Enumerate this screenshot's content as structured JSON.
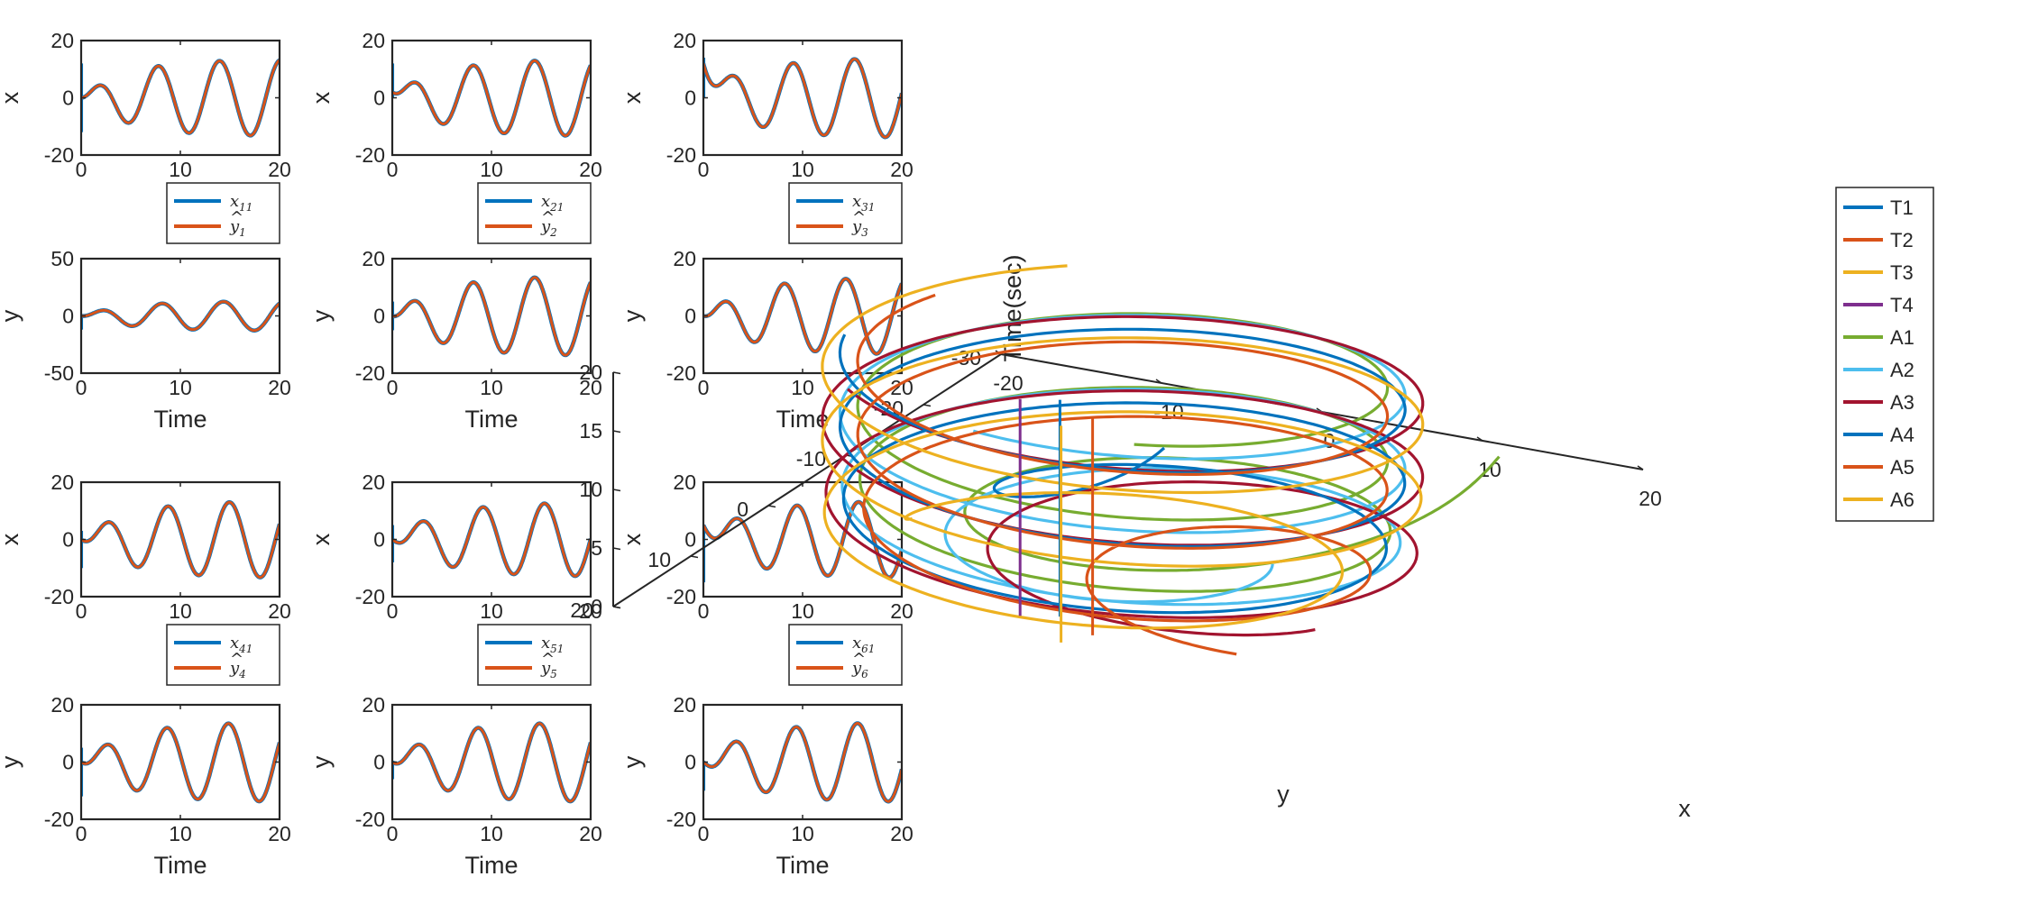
{
  "chart_data": [
    {
      "type": "line",
      "panel": "x_11",
      "ylabel": "x",
      "xlabel": "",
      "xlim": [
        0,
        20
      ],
      "ylim": [
        -20,
        20
      ],
      "xticks": [
        0,
        10,
        20
      ],
      "yticks": [
        -20,
        0,
        20
      ],
      "signal": {
        "amplitude": 13.5,
        "period": 6.2,
        "phase": 0.0,
        "ramp": 4.5,
        "start": 0,
        "spike": [
          -12,
          12
        ]
      },
      "legend": {
        "entries": [
          {
            "label": "x",
            "sub": "11",
            "hat": false
          },
          {
            "label": "y",
            "sub": "1",
            "hat": true
          }
        ]
      }
    },
    {
      "type": "line",
      "panel": "x_21",
      "ylabel": "x",
      "xlabel": "",
      "xlim": [
        0,
        20
      ],
      "ylim": [
        -20,
        20
      ],
      "xticks": [
        0,
        10,
        20
      ],
      "yticks": [
        -20,
        0,
        20
      ],
      "signal": {
        "amplitude": 13.5,
        "period": 6.2,
        "phase": 0.4,
        "ramp": 4.5,
        "start": 2,
        "spike": [
          0,
          12
        ]
      },
      "legend": {
        "entries": [
          {
            "label": "x",
            "sub": "21",
            "hat": false
          },
          {
            "label": "y",
            "sub": "2",
            "hat": true
          }
        ]
      }
    },
    {
      "type": "line",
      "panel": "x_31",
      "ylabel": "x",
      "xlabel": "",
      "xlim": [
        0,
        20
      ],
      "ylim": [
        -20,
        20
      ],
      "xticks": [
        0,
        10,
        20
      ],
      "yticks": [
        -20,
        0,
        20
      ],
      "signal": {
        "amplitude": 14,
        "period": 6.2,
        "phase": 1.3,
        "ramp": 4.5,
        "start": 12,
        "spike": [
          0,
          14
        ]
      },
      "legend": {
        "entries": [
          {
            "label": "x",
            "sub": "31",
            "hat": false
          },
          {
            "label": "y",
            "sub": "3",
            "hat": true
          }
        ]
      }
    },
    {
      "type": "line",
      "panel": "y_1",
      "ylabel": "y",
      "xlabel": "Time",
      "xlim": [
        0,
        20
      ],
      "ylim": [
        -50,
        50
      ],
      "xticks": [
        0,
        10,
        20
      ],
      "yticks": [
        -50,
        0,
        50
      ],
      "signal": {
        "amplitude": 13,
        "period": 6.2,
        "phase": 0.4,
        "ramp": 4.5,
        "start": 0,
        "spike": [
          -12,
          0
        ]
      }
    },
    {
      "type": "line",
      "panel": "y_2",
      "ylabel": "y",
      "xlabel": "Time",
      "xlim": [
        0,
        20
      ],
      "ylim": [
        -20,
        20
      ],
      "xticks": [
        0,
        10,
        20
      ],
      "yticks": [
        -20,
        0,
        20
      ],
      "signal": {
        "amplitude": 14,
        "period": 6.2,
        "phase": 0.4,
        "ramp": 4.5,
        "start": 0,
        "spike": [
          -5,
          5
        ]
      }
    },
    {
      "type": "line",
      "panel": "y_3",
      "ylabel": "y",
      "xlabel": "Time",
      "xlim": [
        0,
        20
      ],
      "ylim": [
        -20,
        20
      ],
      "xticks": [
        0,
        10,
        20
      ],
      "yticks": [
        -20,
        0,
        20
      ],
      "signal": {
        "amplitude": 13.5,
        "period": 6.2,
        "phase": 0.4,
        "ramp": 4.5,
        "start": 0,
        "spike": [
          0,
          0
        ]
      }
    },
    {
      "type": "line",
      "panel": "x_41",
      "ylabel": "x",
      "xlabel": "",
      "xlim": [
        0,
        20
      ],
      "ylim": [
        -20,
        20
      ],
      "xticks": [
        0,
        10,
        20
      ],
      "yticks": [
        -20,
        0,
        20
      ],
      "signal": {
        "amplitude": 13.5,
        "period": 6.2,
        "phase": 1.0,
        "ramp": 4.5,
        "start": 0,
        "spike": [
          -10,
          3
        ]
      },
      "legend": {
        "entries": [
          {
            "label": "x",
            "sub": "41",
            "hat": false
          },
          {
            "label": "y",
            "sub": "4",
            "hat": true
          }
        ]
      }
    },
    {
      "type": "line",
      "panel": "x_51",
      "ylabel": "x",
      "xlabel": "",
      "xlim": [
        0,
        20
      ],
      "ylim": [
        -20,
        20
      ],
      "xticks": [
        0,
        10,
        20
      ],
      "yticks": [
        -20,
        0,
        20
      ],
      "signal": {
        "amplitude": 13,
        "period": 6.2,
        "phase": 1.4,
        "ramp": 4.5,
        "start": 0,
        "spike": [
          -8,
          5
        ]
      },
      "legend": {
        "entries": [
          {
            "label": "x",
            "sub": "51",
            "hat": false
          },
          {
            "label": "y",
            "sub": "5",
            "hat": true
          }
        ]
      }
    },
    {
      "type": "line",
      "panel": "x_61",
      "ylabel": "x",
      "xlabel": "",
      "xlim": [
        0,
        20
      ],
      "ylim": [
        -20,
        20
      ],
      "xticks": [
        0,
        10,
        20
      ],
      "yticks": [
        -20,
        0,
        20
      ],
      "signal": {
        "amplitude": 13.5,
        "period": 6.2,
        "phase": 1.7,
        "ramp": 4.5,
        "start": 5,
        "spike": [
          -15,
          3
        ]
      },
      "legend": {
        "entries": [
          {
            "label": "x",
            "sub": "61",
            "hat": false
          },
          {
            "label": "y",
            "sub": "6",
            "hat": true
          }
        ]
      }
    },
    {
      "type": "line",
      "panel": "y_4",
      "ylabel": "y",
      "xlabel": "Time",
      "xlim": [
        0,
        20
      ],
      "ylim": [
        -20,
        20
      ],
      "xticks": [
        0,
        10,
        20
      ],
      "yticks": [
        -20,
        0,
        20
      ],
      "signal": {
        "amplitude": 14,
        "period": 6.2,
        "phase": 0.9,
        "ramp": 4.5,
        "start": 0,
        "spike": [
          -12,
          5
        ]
      }
    },
    {
      "type": "line",
      "panel": "y_5",
      "ylabel": "y",
      "xlabel": "Time",
      "xlim": [
        0,
        20
      ],
      "ylim": [
        -20,
        20
      ],
      "xticks": [
        0,
        10,
        20
      ],
      "yticks": [
        -20,
        0,
        20
      ],
      "signal": {
        "amplitude": 14,
        "period": 6.2,
        "phase": 0.9,
        "ramp": 4.5,
        "start": 0,
        "spike": [
          -6,
          0
        ]
      }
    },
    {
      "type": "line",
      "panel": "y_6",
      "ylabel": "y",
      "xlabel": "Time",
      "xlim": [
        0,
        20
      ],
      "ylim": [
        -20,
        20
      ],
      "xticks": [
        0,
        10,
        20
      ],
      "yticks": [
        -20,
        0,
        20
      ],
      "signal": {
        "amplitude": 14,
        "period": 6.2,
        "phase": 1.6,
        "ramp": 4.5,
        "start": 0,
        "spike": [
          -10,
          0
        ]
      }
    },
    {
      "type": "line3d",
      "panel": "3d",
      "xlabel": "x",
      "ylabel": "y",
      "zlabel": "Time(sec)",
      "xlim": [
        -20,
        20
      ],
      "ylim": [
        -30,
        20
      ],
      "zlim": [
        0,
        20
      ],
      "xticks": [
        -20,
        -10,
        0,
        10,
        20
      ],
      "yticks": [
        -30,
        -20,
        -10,
        0,
        10,
        20
      ],
      "zticks": [
        0,
        5,
        10,
        15,
        20
      ],
      "legend": [
        "T1",
        "T2",
        "T3",
        "T4",
        "A1",
        "A2",
        "A3",
        "A4",
        "A5",
        "A6"
      ],
      "targets": [
        {
          "name": "T1",
          "x": 3,
          "y": 10
        },
        {
          "name": "T2",
          "x": 6,
          "y": 12
        },
        {
          "name": "T3",
          "x": 5,
          "y": 14
        },
        {
          "name": "T4",
          "x": 1,
          "y": 11
        }
      ],
      "agents": [
        {
          "name": "A1",
          "r": 15,
          "period": 6.3,
          "phase": 0.0,
          "x0": 12,
          "y0": -28
        },
        {
          "name": "A2",
          "r": 16,
          "period": 6.3,
          "phase": 0.6,
          "x0": 9,
          "y0": -5
        },
        {
          "name": "A3",
          "r": 17,
          "period": 6.3,
          "phase": 1.2,
          "x0": 16,
          "y0": 4
        },
        {
          "name": "A4",
          "r": 16,
          "period": 6.3,
          "phase": 1.8,
          "x0": -5,
          "y0": -20
        },
        {
          "name": "A5",
          "r": 15,
          "period": 6.3,
          "phase": 2.4,
          "x0": 14,
          "y0": 10
        },
        {
          "name": "A6",
          "r": 17,
          "period": 6.3,
          "phase": 3.0,
          "x0": -12,
          "y0": -2
        }
      ]
    }
  ],
  "colors": {
    "T1": "#0072BD",
    "T2": "#D95319",
    "T3": "#EDB120",
    "T4": "#7E2F8E",
    "A1": "#77AC30",
    "A2": "#4DBEEE",
    "A3": "#A2142F",
    "A4": "#0072BD",
    "A5": "#D95319",
    "A6": "#EDB120",
    "series1": "#0072BD",
    "series2": "#D95319",
    "axis": "#262626"
  }
}
